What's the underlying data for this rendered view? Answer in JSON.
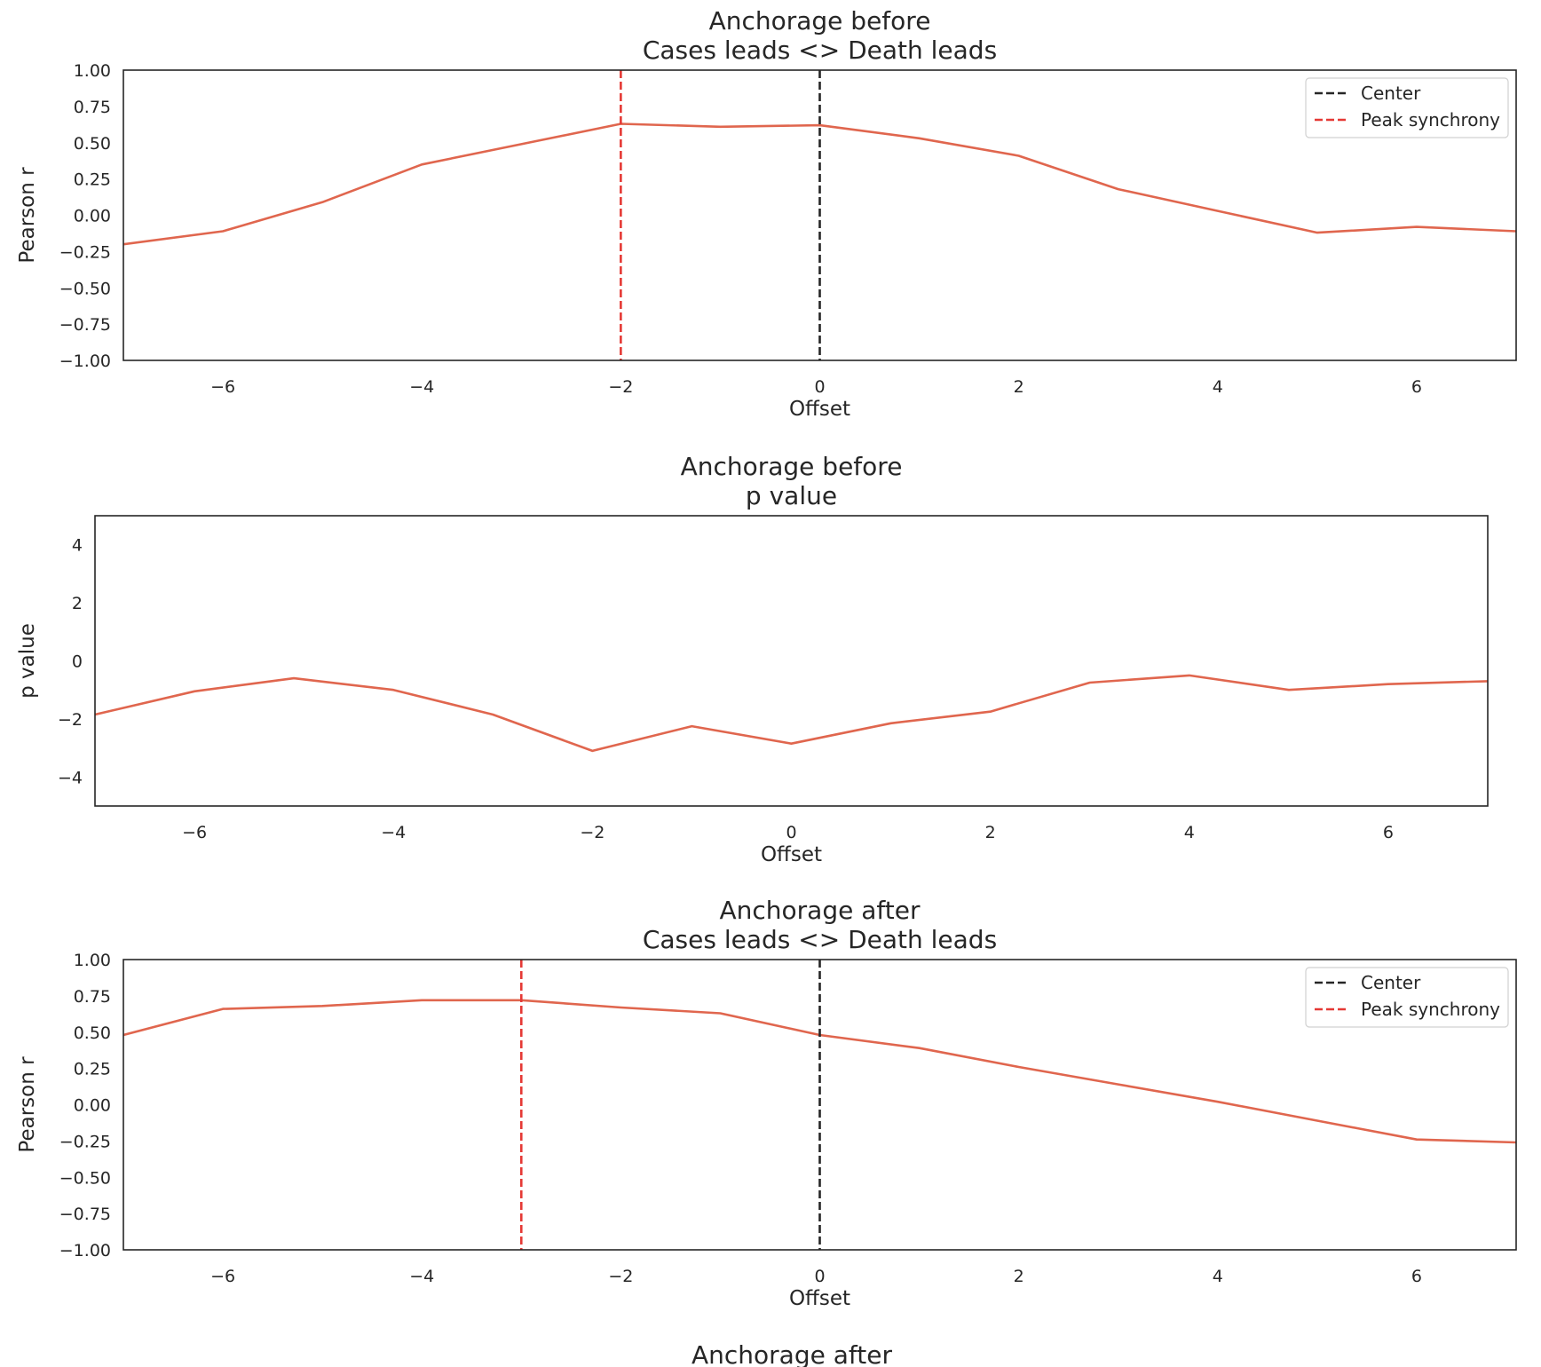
{
  "chart_data": [
    {
      "type": "line",
      "title": "Anchorage before\nCases leads <> Death leads",
      "xlabel": "Offset",
      "ylabel": "Pearson r",
      "xlim": [
        -7,
        7
      ],
      "ylim": [
        -1,
        1
      ],
      "xticks": [
        -6,
        -4,
        -2,
        0,
        2,
        4,
        6
      ],
      "xtick_labels": [
        "−6",
        "−4",
        "−2",
        "0",
        "2",
        "4",
        "6"
      ],
      "yticks": [
        1,
        0.75,
        0.5,
        0.25,
        0,
        -0.25,
        -0.5,
        -0.75,
        -1
      ],
      "ytick_labels": [
        "1.00",
        "0.75",
        "0.50",
        "0.25",
        "0.00",
        "−0.25",
        "−0.50",
        "−0.75",
        "−1.00"
      ],
      "grid": false,
      "series": [
        {
          "color": "#e0664e",
          "x": [
            -7,
            -6,
            -5,
            -4,
            -3,
            -2,
            -1,
            0,
            1,
            2,
            3,
            4,
            5,
            6,
            7
          ],
          "y": [
            -0.2,
            -0.11,
            0.09,
            0.35,
            0.49,
            0.63,
            0.61,
            0.62,
            0.53,
            0.41,
            0.18,
            0.03,
            -0.12,
            -0.08,
            -0.11
          ]
        }
      ],
      "vlines": [
        {
          "x": 0,
          "color": "#262626",
          "style": "dashed",
          "label": "Center"
        },
        {
          "x": -2,
          "color": "#e53935",
          "style": "dashed",
          "label": "Peak synchrony"
        }
      ],
      "legend": {
        "position": "top-right",
        "entries": [
          "Center",
          "Peak synchrony"
        ]
      }
    },
    {
      "type": "line",
      "title": "Anchorage before\np value",
      "xlabel": "Offset",
      "ylabel": "p value",
      "xlim": [
        -7,
        7
      ],
      "ylim": [
        -5,
        5
      ],
      "xticks": [
        -6,
        -4,
        -2,
        0,
        2,
        4,
        6
      ],
      "xtick_labels": [
        "−6",
        "−4",
        "−2",
        "0",
        "2",
        "4",
        "6"
      ],
      "yticks": [
        4,
        2,
        0,
        -2,
        -4
      ],
      "ytick_labels": [
        "4",
        "2",
        "0",
        "−2",
        "−4"
      ],
      "grid": false,
      "series": [
        {
          "color": "#e0664e",
          "x": [
            -7,
            -6,
            -5,
            -4,
            -3,
            -2,
            -1,
            0,
            1,
            2,
            3,
            4,
            5,
            6,
            7
          ],
          "y": [
            -1.85,
            -1.05,
            -0.6,
            -1.0,
            -1.85,
            -3.1,
            -2.25,
            -2.85,
            -2.15,
            -1.75,
            -0.75,
            -0.5,
            -1.0,
            -0.8,
            -0.7
          ]
        }
      ],
      "vlines": [],
      "legend": null
    },
    {
      "type": "line",
      "title": "Anchorage after\nCases leads <> Death leads",
      "xlabel": "Offset",
      "ylabel": "Pearson r",
      "xlim": [
        -7,
        7
      ],
      "ylim": [
        -1,
        1
      ],
      "xticks": [
        -6,
        -4,
        -2,
        0,
        2,
        4,
        6
      ],
      "xtick_labels": [
        "−6",
        "−4",
        "−2",
        "0",
        "2",
        "4",
        "6"
      ],
      "yticks": [
        1,
        0.75,
        0.5,
        0.25,
        0,
        -0.25,
        -0.5,
        -0.75,
        -1
      ],
      "ytick_labels": [
        "1.00",
        "0.75",
        "0.50",
        "0.25",
        "0.00",
        "−0.25",
        "−0.50",
        "−0.75",
        "−1.00"
      ],
      "grid": false,
      "series": [
        {
          "color": "#e0664e",
          "x": [
            -7,
            -6,
            -5,
            -4,
            -3,
            -2,
            -1,
            0,
            1,
            2,
            3,
            4,
            5,
            6,
            7
          ],
          "y": [
            0.48,
            0.66,
            0.68,
            0.72,
            0.72,
            0.67,
            0.63,
            0.48,
            0.39,
            0.26,
            0.14,
            0.02,
            -0.11,
            -0.24,
            -0.26
          ]
        }
      ],
      "vlines": [
        {
          "x": 0,
          "color": "#262626",
          "style": "dashed",
          "label": "Center"
        },
        {
          "x": -3,
          "color": "#e53935",
          "style": "dashed",
          "label": "Peak synchrony"
        }
      ],
      "legend": {
        "position": "top-right",
        "entries": [
          "Center",
          "Peak synchrony"
        ]
      }
    },
    {
      "type": "line",
      "title": "Anchorage after",
      "partial": true
    }
  ]
}
